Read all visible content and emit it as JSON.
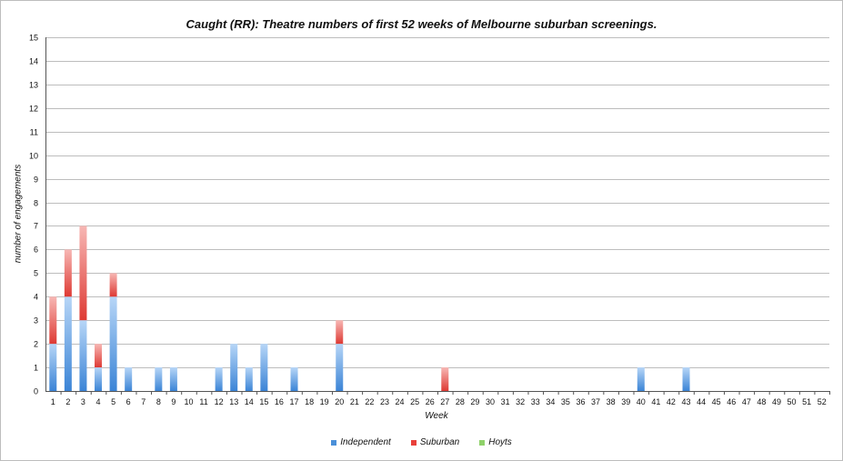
{
  "chart_data": {
    "type": "bar",
    "stacked": true,
    "title": "Caught (RR): Theatre numbers of first 52 weeks of Melbourne suburban screenings.",
    "xlabel": "Week",
    "ylabel": "number of engagements",
    "ylim": [
      0,
      15
    ],
    "yticks": [
      0,
      1,
      2,
      3,
      4,
      5,
      6,
      7,
      8,
      9,
      10,
      11,
      12,
      13,
      14,
      15
    ],
    "grid": true,
    "legend_position": "bottom",
    "categories": [
      "1",
      "2",
      "3",
      "4",
      "5",
      "6",
      "7",
      "8",
      "9",
      "10",
      "11",
      "12",
      "13",
      "14",
      "15",
      "16",
      "17",
      "18",
      "19",
      "20",
      "21",
      "22",
      "23",
      "24",
      "25",
      "26",
      "27",
      "28",
      "29",
      "30",
      "31",
      "32",
      "33",
      "34",
      "35",
      "36",
      "37",
      "38",
      "39",
      "40",
      "41",
      "42",
      "43",
      "44",
      "45",
      "46",
      "47",
      "48",
      "49",
      "50",
      "51",
      "52"
    ],
    "series": [
      {
        "name": "Independent",
        "color": "#4a90d9",
        "values": [
          2,
          4,
          3,
          1,
          4,
          1,
          0,
          1,
          1,
          0,
          0,
          1,
          2,
          1,
          2,
          0,
          1,
          0,
          0,
          2,
          0,
          0,
          0,
          0,
          0,
          0,
          0,
          0,
          0,
          0,
          0,
          0,
          0,
          0,
          0,
          0,
          0,
          0,
          0,
          1,
          0,
          0,
          1,
          0,
          0,
          0,
          0,
          0,
          0,
          0,
          0,
          0
        ]
      },
      {
        "name": "Suburban",
        "color": "#e8403a",
        "values": [
          2,
          2,
          4,
          1,
          1,
          0,
          0,
          0,
          0,
          0,
          0,
          0,
          0,
          0,
          0,
          0,
          0,
          0,
          0,
          1,
          0,
          0,
          0,
          0,
          0,
          0,
          1,
          0,
          0,
          0,
          0,
          0,
          0,
          0,
          0,
          0,
          0,
          0,
          0,
          0,
          0,
          0,
          0,
          0,
          0,
          0,
          0,
          0,
          0,
          0,
          0,
          0
        ]
      },
      {
        "name": "Hoyts",
        "color": "#8fd16a",
        "values": [
          0,
          0,
          0,
          0,
          0,
          0,
          0,
          0,
          0,
          0,
          0,
          0,
          0,
          0,
          0,
          0,
          0,
          0,
          0,
          0,
          0,
          0,
          0,
          0,
          0,
          0,
          0,
          0,
          0,
          0,
          0,
          0,
          0,
          0,
          0,
          0,
          0,
          0,
          0,
          0,
          0,
          0,
          0,
          0,
          0,
          0,
          0,
          0,
          0,
          0,
          0,
          0
        ]
      }
    ]
  }
}
